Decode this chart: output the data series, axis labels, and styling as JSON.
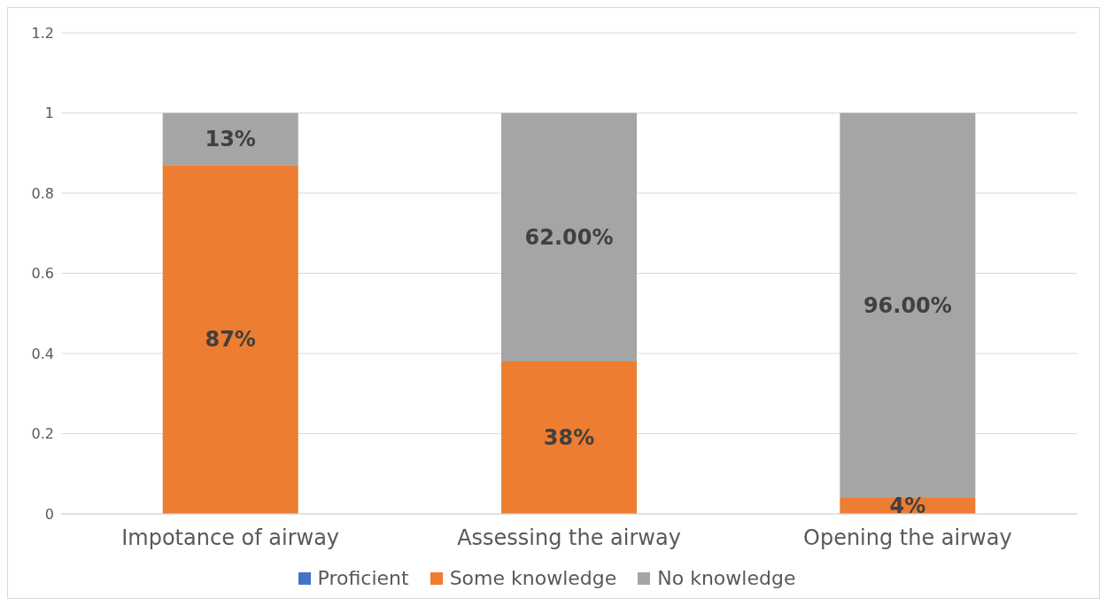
{
  "chart_data": {
    "type": "bar",
    "stacked": true,
    "categories": [
      "Impotance of airway",
      "Assessing the airway",
      "Opening the airway"
    ],
    "series": [
      {
        "name": "Proficient",
        "color": "#4472c4",
        "values": [
          0,
          0,
          0
        ]
      },
      {
        "name": "Some knowledge",
        "color": "#ed7d31",
        "values": [
          0.87,
          0.38,
          0.04
        ],
        "value_labels": [
          "87%",
          "38%",
          "4%"
        ]
      },
      {
        "name": "No knowledge",
        "color": "#a5a5a5",
        "values": [
          0.13,
          0.62,
          0.96
        ],
        "value_labels": [
          "13%",
          "62.00%",
          "96.00%"
        ]
      }
    ],
    "ylim": [
      0,
      1.2
    ],
    "yticks": [
      0,
      0.2,
      0.4,
      0.6,
      0.8,
      1,
      1.2
    ],
    "grid": "y",
    "legend": "bottom"
  }
}
